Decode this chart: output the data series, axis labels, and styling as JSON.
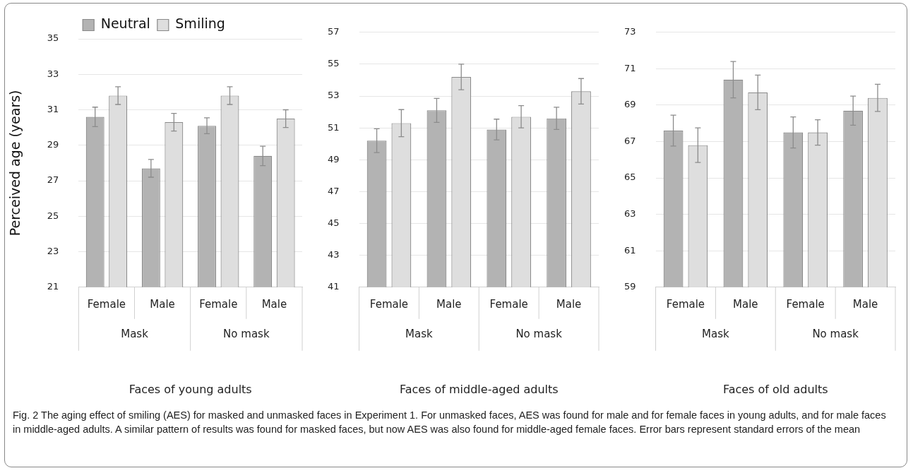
{
  "chart_data": [
    {
      "type": "bar",
      "ylabel": "Perceived age (years)",
      "xlabel": "Faces of young adults",
      "categories": [
        "Female",
        "Male",
        "Female",
        "Male"
      ],
      "legend": "top",
      "grid": "y",
      "ylim": [
        21,
        35
      ],
      "yticks": [
        21,
        23,
        25,
        27,
        29,
        31,
        33,
        35
      ],
      "series": [
        {
          "name": "Neutral",
          "color": "#b3b3b3",
          "values": [
            30.6,
            27.7,
            30.1,
            28.4
          ],
          "errors": [
            0.55,
            0.5,
            0.45,
            0.55
          ]
        },
        {
          "name": "Smiling",
          "color": "#dedede",
          "values": [
            31.8,
            30.3,
            31.8,
            30.5
          ],
          "errors": [
            0.5,
            0.5,
            0.5,
            0.5
          ]
        }
      ],
      "annotations": [
        "Mask",
        "No mask"
      ]
    },
    {
      "type": "bar",
      "xlabel": "Faces of middle-aged adults",
      "categories": [
        "Female",
        "Male",
        "Female",
        "Male"
      ],
      "grid": "y",
      "ylim": [
        41,
        57
      ],
      "yticks": [
        41,
        43,
        45,
        47,
        49,
        51,
        53,
        55,
        57
      ],
      "series": [
        {
          "color": "#b3b3b3",
          "values": [
            50.2,
            52.1,
            50.9,
            51.6
          ],
          "errors": [
            0.75,
            0.75,
            0.65,
            0.7
          ]
        },
        {
          "color": "#dedede",
          "values": [
            51.3,
            54.2,
            51.7,
            53.3
          ],
          "errors": [
            0.85,
            0.8,
            0.7,
            0.8
          ]
        }
      ],
      "annotations": [
        "Mask",
        "No mask"
      ]
    },
    {
      "type": "bar",
      "xlabel": "Faces of old adults",
      "categories": [
        "Female",
        "Male",
        "Female",
        "Male"
      ],
      "grid": "y",
      "ylim": [
        59,
        73
      ],
      "yticks": [
        59,
        61,
        63,
        65,
        67,
        69,
        71,
        73
      ],
      "series": [
        {
          "color": "#b3b3b3",
          "values": [
            67.6,
            70.4,
            67.5,
            68.7
          ],
          "errors": [
            0.85,
            1.0,
            0.85,
            0.8
          ]
        },
        {
          "color": "#dedede",
          "values": [
            66.8,
            69.7,
            67.5,
            69.4
          ],
          "errors": [
            0.95,
            0.95,
            0.7,
            0.75
          ]
        }
      ],
      "annotations": [
        "Mask",
        "No mask",
        "Fig. 2  The aging effect of smiling (AES) for masked and unmasked faces in Experiment 1. For unmasked faces, AES was found for male and for female faces in young adults, and for male faces in middle-aged adults. A similar pattern of results was found for masked faces, but now AES was also found for middle-aged female faces. Error bars represent standard errors of the mean"
      ]
    }
  ]
}
